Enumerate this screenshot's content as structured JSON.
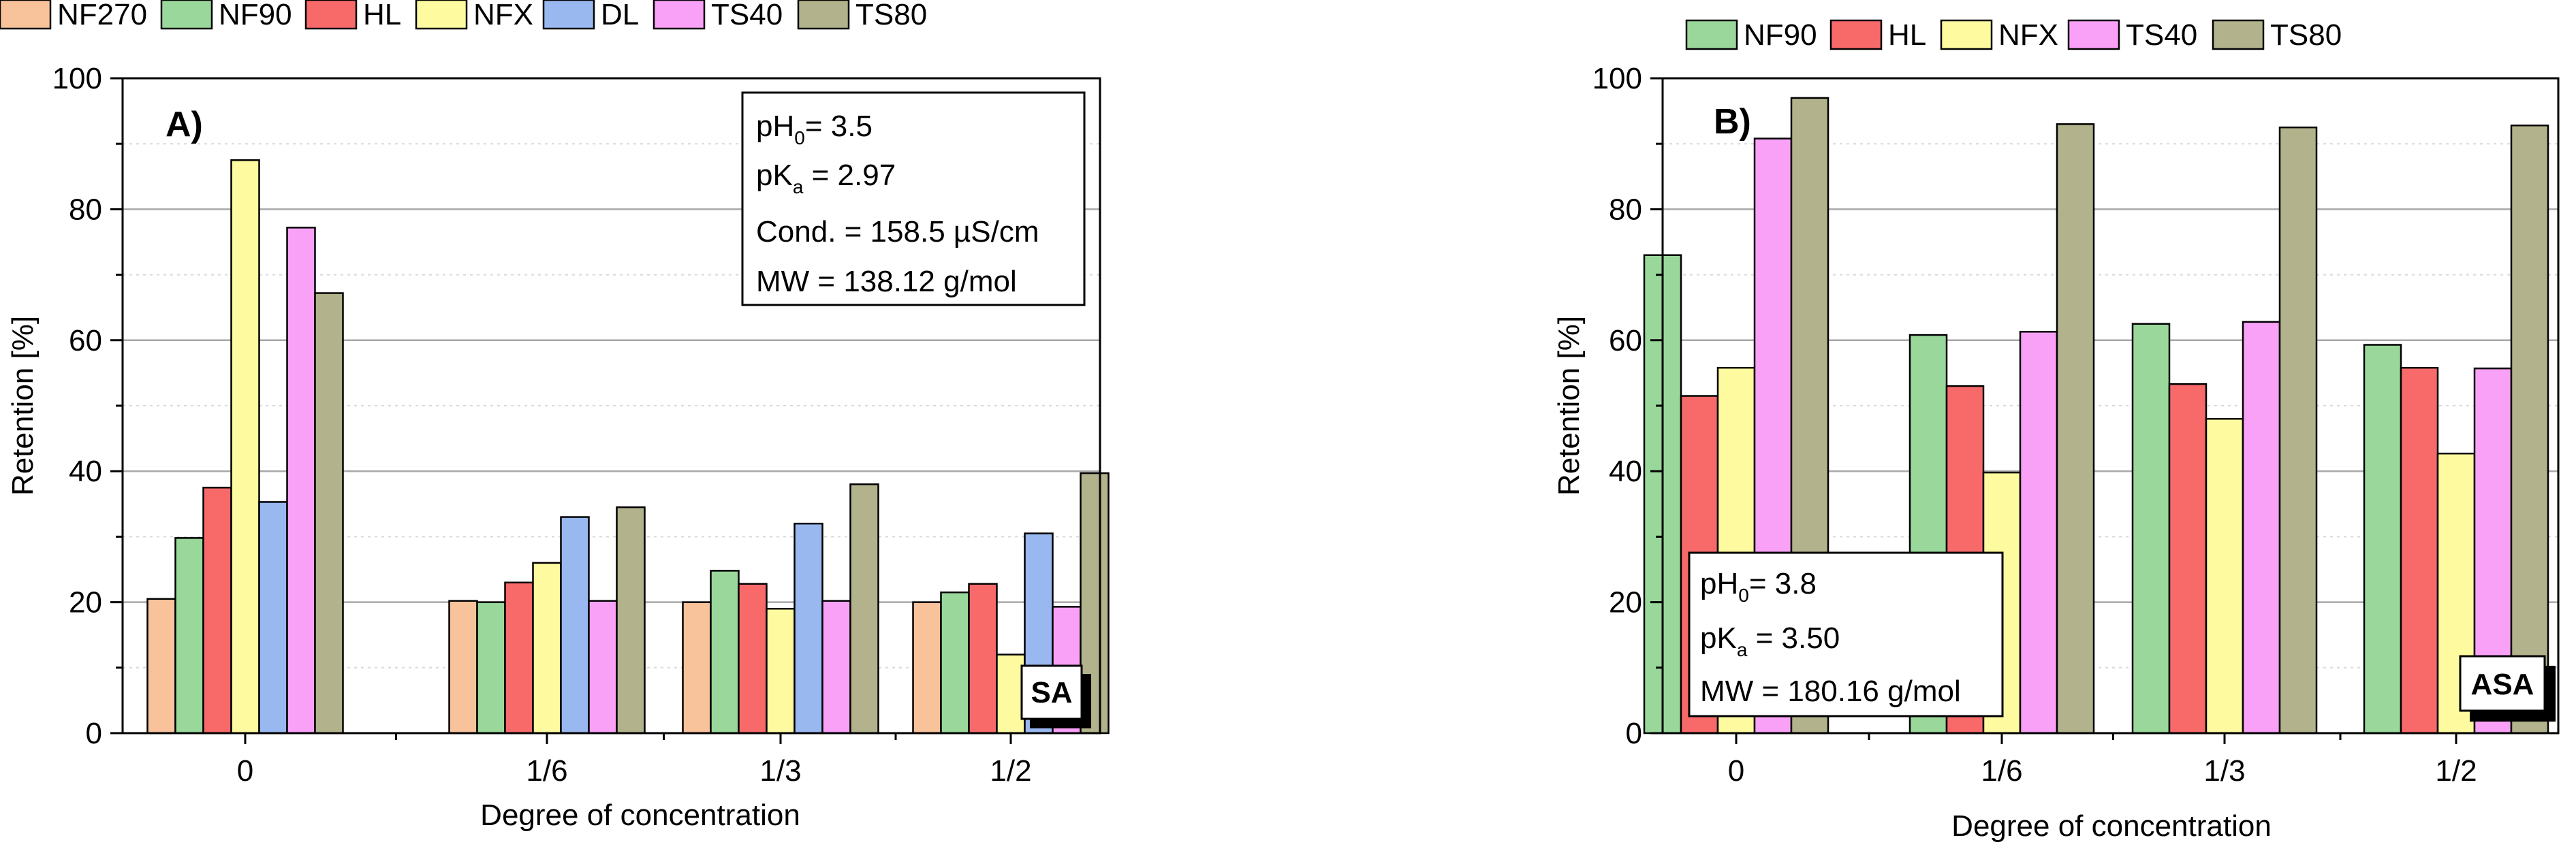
{
  "chart_data": [
    {
      "type": "bar",
      "panel_label": "A)",
      "badge": "SA",
      "categories": [
        "0",
        "1/6",
        "1/3",
        "1/2"
      ],
      "series": [
        {
          "name": "NF270",
          "color": "#f8c29a",
          "values": [
            20.5,
            20.2,
            20.0,
            20.0
          ]
        },
        {
          "name": "NF90",
          "color": "#99d89a",
          "values": [
            29.8,
            20.0,
            24.8,
            21.5
          ]
        },
        {
          "name": "HL",
          "color": "#f86a6a",
          "values": [
            37.5,
            23.0,
            22.8,
            22.8
          ]
        },
        {
          "name": "NFX",
          "color": "#fdfa9f",
          "values": [
            87.5,
            26.0,
            19.0,
            12.0
          ]
        },
        {
          "name": "DL",
          "color": "#9ab8f0",
          "values": [
            35.3,
            33.0,
            32.0,
            30.5
          ]
        },
        {
          "name": "TS40",
          "color": "#f9a1f7",
          "values": [
            77.2,
            20.2,
            20.2,
            19.3
          ]
        },
        {
          "name": "TS80",
          "color": "#b2b28c",
          "values": [
            67.2,
            34.5,
            38.0,
            39.7
          ]
        }
      ],
      "xlabel": "Degree of concentration",
      "ylabel": "Retention [%]",
      "ylim": [
        0,
        100
      ],
      "yticks": [
        "0",
        "20",
        "40",
        "60",
        "80",
        "100"
      ],
      "grid": true,
      "legend": "top",
      "infobox": {
        "line1": {
          "prefix": "pH",
          "sub": "0",
          "suffix": "= 3.5"
        },
        "line2": {
          "prefix": "pK",
          "sub": "a",
          "suffix": " = 2.97"
        },
        "line3": "Cond. = 158.5 µS/cm",
        "line4": "MW = 138.12 g/mol"
      }
    },
    {
      "type": "bar",
      "panel_label": "B)",
      "badge": "ASA",
      "categories": [
        "0",
        "1/6",
        "1/3",
        "1/2"
      ],
      "series": [
        {
          "name": "NF90",
          "color": "#99d89a",
          "values": [
            73.0,
            60.8,
            62.5,
            59.3
          ]
        },
        {
          "name": "HL",
          "color": "#f86a6a",
          "values": [
            51.5,
            53.0,
            53.3,
            55.8
          ]
        },
        {
          "name": "NFX",
          "color": "#fdfa9f",
          "values": [
            55.8,
            39.8,
            48.0,
            42.7
          ]
        },
        {
          "name": "TS40",
          "color": "#f9a1f7",
          "values": [
            90.8,
            61.3,
            62.8,
            55.7
          ]
        },
        {
          "name": "TS80",
          "color": "#b2b28c",
          "values": [
            97.0,
            93.0,
            92.5,
            92.8
          ]
        }
      ],
      "xlabel": "Degree of concentration",
      "ylabel": "Retention [%]",
      "ylim": [
        0,
        100
      ],
      "yticks": [
        "0",
        "20",
        "40",
        "60",
        "80",
        "100"
      ],
      "grid": true,
      "legend": "top",
      "infobox": {
        "line1": {
          "prefix": "pH",
          "sub": "0",
          "suffix": "= 3.8"
        },
        "line2": {
          "prefix": "pK",
          "sub": "a",
          "suffix": " = 3.50"
        },
        "line3": "MW = 180.16 g/mol"
      }
    }
  ]
}
